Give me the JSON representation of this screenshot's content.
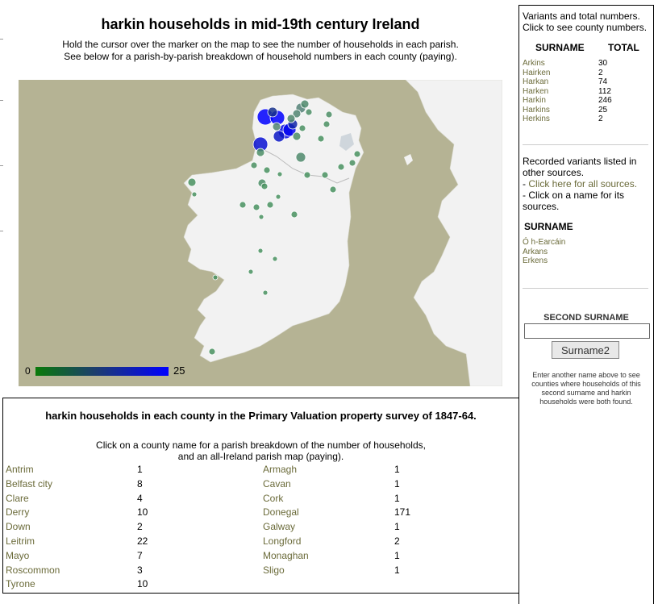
{
  "page": {
    "title": "harkin households in mid-19th century Ireland",
    "instructions": [
      "Hold the cursor over the marker on the map to see the number of households in each parish.",
      "See below for a parish-by-parish breakdown of household numbers in each county (paying)."
    ]
  },
  "map": {
    "legend_min": "0",
    "legend_max": "25",
    "colors": {
      "sea": "#b5b394",
      "land": "#f2f2f2",
      "low": "#0a7a0a",
      "high": "#0000ff"
    }
  },
  "county_section": {
    "title": "harkin households in each county in the Primary Valuation property survey of 1847-64.",
    "note": [
      "Click on a county name for a parish breakdown of the number of households,",
      "and an all-Ireland parish map (paying)."
    ],
    "left": [
      {
        "county": "Antrim",
        "count": "1"
      },
      {
        "county": "Belfast city",
        "count": "8"
      },
      {
        "county": "Clare",
        "count": "4"
      },
      {
        "county": "Derry",
        "count": "10"
      },
      {
        "county": "Down",
        "count": "2"
      },
      {
        "county": "Leitrim",
        "count": "22"
      },
      {
        "county": "Mayo",
        "count": "7"
      },
      {
        "county": "Roscommon",
        "count": "3"
      },
      {
        "county": "Tyrone",
        "count": "10"
      }
    ],
    "right": [
      {
        "county": "Armagh",
        "count": "1"
      },
      {
        "county": "Cavan",
        "count": "1"
      },
      {
        "county": "Cork",
        "count": "1"
      },
      {
        "county": "Donegal",
        "count": "171"
      },
      {
        "county": "Galway",
        "count": "1"
      },
      {
        "county": "Longford",
        "count": "2"
      },
      {
        "county": "Monaghan",
        "count": "1"
      },
      {
        "county": "Sligo",
        "count": "1"
      }
    ]
  },
  "variants": {
    "intro": [
      "Variants and total numbers.",
      "Click to see county numbers."
    ],
    "col_surname": "SURNAME",
    "col_total": "TOTAL",
    "rows": [
      {
        "name": "Arkins",
        "total": "30"
      },
      {
        "name": "Hairken",
        "total": "2"
      },
      {
        "name": "Harkan",
        "total": "74"
      },
      {
        "name": "Harken",
        "total": "112"
      },
      {
        "name": "Harkin",
        "total": "246"
      },
      {
        "name": "Harkins",
        "total": "25"
      },
      {
        "name": "Herkins",
        "total": "2"
      }
    ]
  },
  "recorded": {
    "lines": [
      "Recorded variants listed in",
      "other sources.",
      "- Click here for all sources.",
      "- Click on a name for its",
      "sources."
    ],
    "surname_header": "SURNAME",
    "names": [
      "Ó h-Earcáin",
      "Arkans",
      "Erkens"
    ]
  },
  "second_surname": {
    "label": "SECOND SURNAME",
    "input_value": "",
    "button_label": "Surname2",
    "help": [
      "Enter another name above to see",
      "counties where households of this",
      "second surname and harkin",
      "households were both found."
    ]
  }
}
